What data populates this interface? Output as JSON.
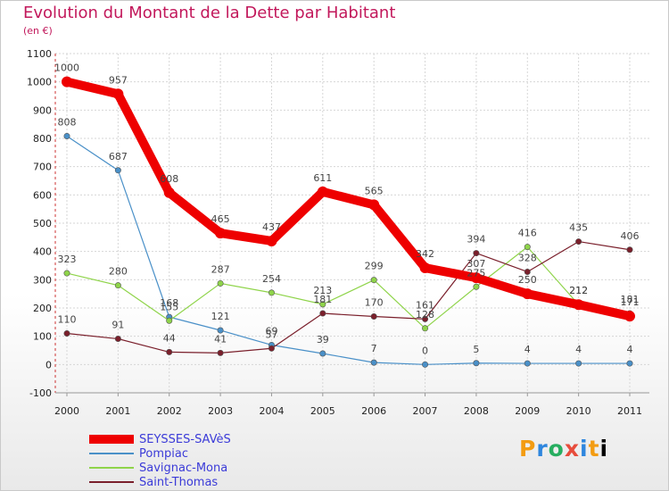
{
  "chart_data": {
    "type": "line",
    "title": "Evolution du Montant de la Dette par Habitant",
    "subtitle": "(en €)",
    "x": [
      "2000",
      "2001",
      "2002",
      "2003",
      "2004",
      "2005",
      "2006",
      "2007",
      "2008",
      "2009",
      "2010",
      "2011"
    ],
    "ylim": [
      -100,
      1100
    ],
    "yticks": [
      -100,
      0,
      100,
      200,
      300,
      400,
      500,
      600,
      700,
      800,
      900,
      1000,
      1100
    ],
    "grid": true,
    "legend_position": "bottom-left",
    "series": [
      {
        "name": "SEYSSES-SAVèS",
        "color": "#ee0000",
        "values": [
          1000,
          957,
          608,
          465,
          437,
          611,
          565,
          342,
          307,
          250,
          212,
          171
        ]
      },
      {
        "name": "Pompiac",
        "color": "#4a90c8",
        "values": [
          808,
          687,
          168,
          121,
          69,
          39,
          7,
          0,
          5,
          4,
          4,
          4
        ]
      },
      {
        "name": "Savignac-Mona",
        "color": "#8fd44a",
        "values": [
          323,
          280,
          155,
          287,
          254,
          213,
          299,
          128,
          275,
          416,
          212,
          181
        ]
      },
      {
        "name": "Saint-Thomas",
        "color": "#7a1f2b",
        "values": [
          110,
          91,
          44,
          41,
          57,
          181,
          170,
          161,
          394,
          328,
          435,
          406
        ]
      }
    ]
  },
  "brand": {
    "letters": [
      "P",
      "r",
      "o",
      "x",
      "i",
      "t",
      "i"
    ]
  }
}
